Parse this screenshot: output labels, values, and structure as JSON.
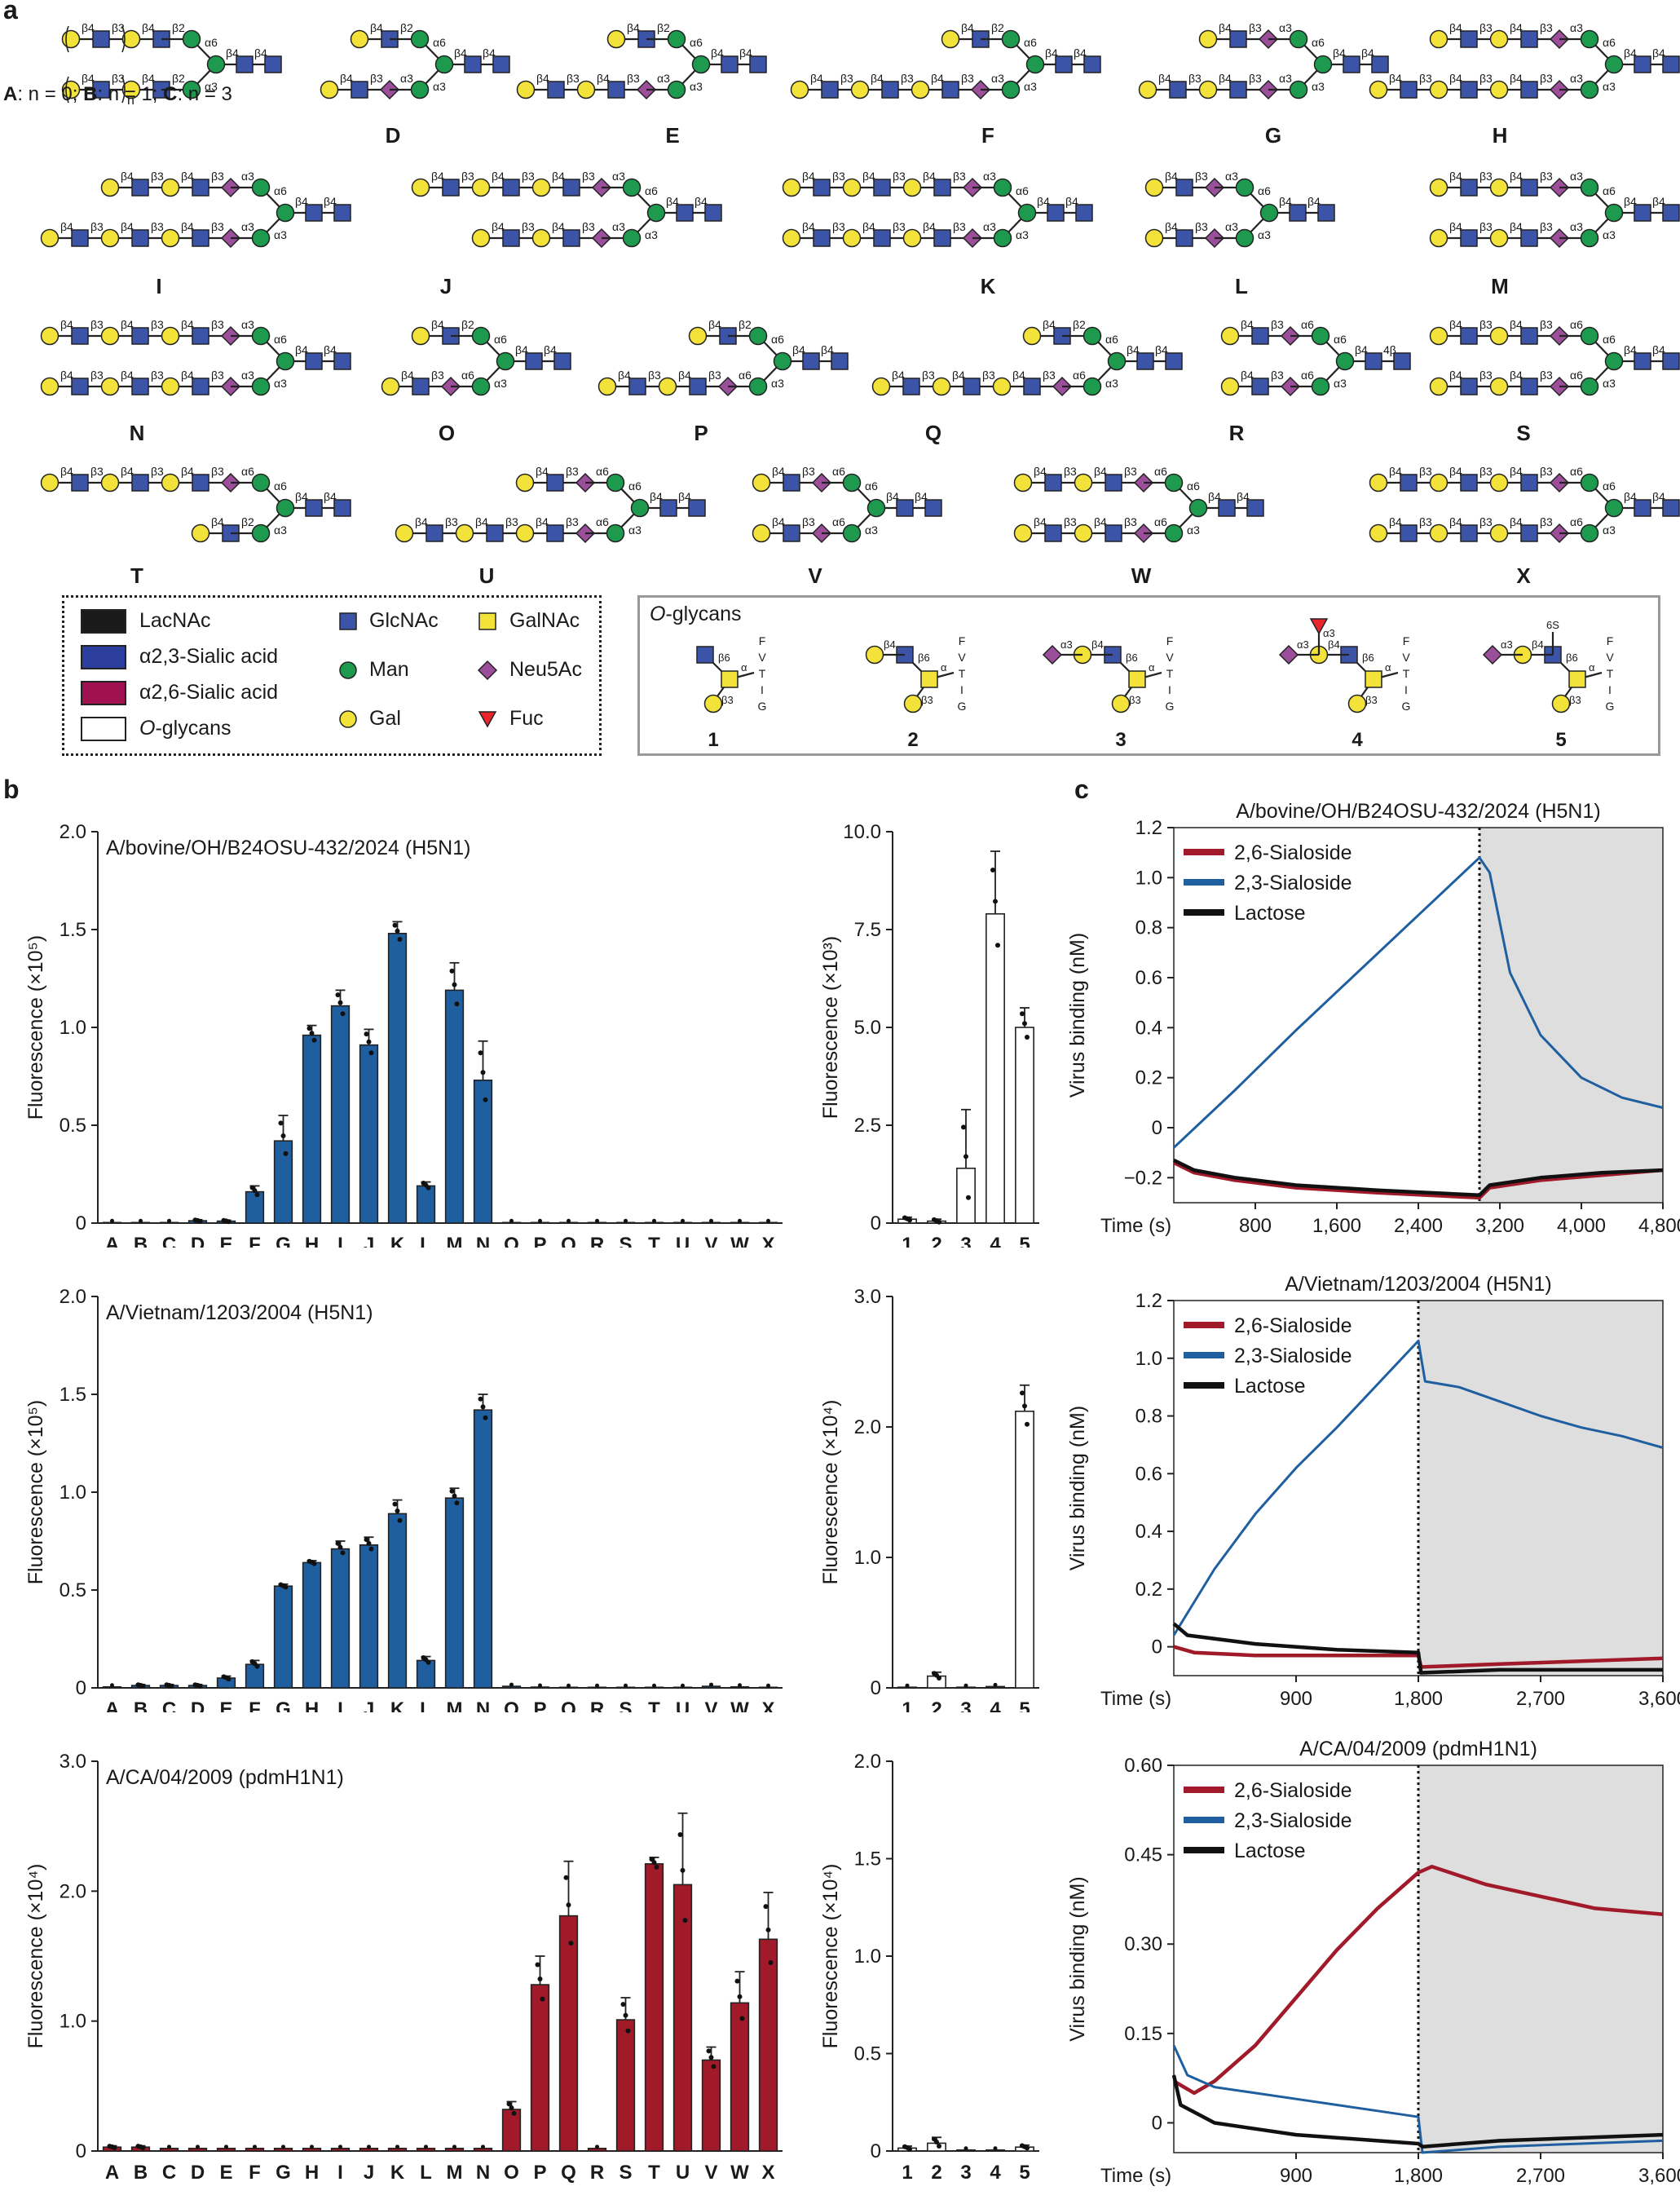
{
  "panels": {
    "a": "a",
    "b": "b",
    "c": "c"
  },
  "glycan_labels": [
    "D",
    "E",
    "F",
    "G",
    "H",
    "I",
    "J",
    "K",
    "L",
    "M",
    "N",
    "O",
    "P",
    "Q",
    "R",
    "S",
    "T",
    "U",
    "V",
    "W",
    "X"
  ],
  "abc_caption": {
    "a": "A",
    "a_text": ": n = 0; ",
    "b": "B",
    "b_text": ": n = 1; ",
    "c": "C",
    "c_text": ": n = 3"
  },
  "legend": {
    "lacnac": "LacNAc",
    "sia23": "α2,3-Sialic acid",
    "sia26": "α2,6-Sialic acid",
    "oglycans": "O-glycans",
    "glcnac": "GlcNAc",
    "man": "Man",
    "gal": "Gal",
    "galnac": "GalNAc",
    "neu5ac": "Neu5Ac",
    "fuc": "Fuc",
    "colors": {
      "lacnac": "#1a1a1a",
      "sia23": "#2d3f9e",
      "sia26": "#a0124f",
      "glcnac": "#3b54a8",
      "man": "#1e9a4e",
      "gal": "#f2e23a",
      "galnac": "#f2e23a",
      "neu5ac": "#9b4f9b",
      "fuc": "#e8262b"
    }
  },
  "oglycan_box": {
    "title_italic": "O",
    "title_rest": "-glycans",
    "numbers": [
      "1",
      "2",
      "3",
      "4",
      "5"
    ],
    "peptide": [
      "F",
      "V",
      "T",
      "I",
      "G"
    ]
  },
  "linkages": {
    "b4": "β4",
    "b3": "β3",
    "b2": "β2",
    "b6": "β6",
    "a6": "α6",
    "a3": "α3",
    "a": "α",
    "n": "n",
    "sixS": "6S",
    "fourb": "4β"
  },
  "chart_data": [
    {
      "id": "b1-left",
      "type": "bar",
      "title": "A/bovine/OH/B24OSU-432/2024 (H5N1)",
      "ylabel": "Fluorescence (×10⁵)",
      "ylim": [
        0,
        2.0
      ],
      "yticks": [
        "0",
        "0.5",
        "1.0",
        "1.5",
        "2.0"
      ],
      "ytick_values": [
        0,
        0.5,
        1.0,
        1.5,
        2.0
      ],
      "categories": [
        "A",
        "B",
        "C",
        "D",
        "E",
        "F",
        "G",
        "H",
        "I",
        "J",
        "K",
        "L",
        "M",
        "N",
        "O",
        "P",
        "Q",
        "R",
        "S",
        "T",
        "U",
        "V",
        "W",
        "X"
      ],
      "values": [
        0.003,
        0.003,
        0.003,
        0.012,
        0.01,
        0.16,
        0.42,
        0.96,
        1.11,
        0.91,
        1.48,
        0.19,
        1.19,
        0.73,
        0.003,
        0.003,
        0.003,
        0.003,
        0.003,
        0.003,
        0.003,
        0.003,
        0.003,
        0.003
      ],
      "errors": [
        0,
        0,
        0,
        0.005,
        0.005,
        0.03,
        0.13,
        0.05,
        0.08,
        0.08,
        0.06,
        0.02,
        0.14,
        0.2,
        0,
        0,
        0,
        0,
        0,
        0,
        0,
        0,
        0,
        0
      ],
      "color": "#1f5fa0"
    },
    {
      "id": "b1-right",
      "type": "bar",
      "ylabel": "Fluorescence (×10³)",
      "ylim": [
        0,
        10.0
      ],
      "yticks": [
        "0",
        "2.5",
        "5.0",
        "7.5",
        "10.0"
      ],
      "ytick_values": [
        0,
        2.5,
        5.0,
        7.5,
        10.0
      ],
      "categories": [
        "1",
        "2",
        "3",
        "4",
        "5"
      ],
      "values": [
        0.1,
        0.05,
        1.4,
        7.9,
        5.0
      ],
      "errors": [
        0.05,
        0.05,
        1.5,
        1.6,
        0.5
      ],
      "color": "#ffffff"
    },
    {
      "id": "b2-left",
      "type": "bar",
      "title": "A/Vietnam/1203/2004 (H5N1)",
      "ylabel": "Fluorescence (×10⁵)",
      "ylim": [
        0,
        2.0
      ],
      "yticks": [
        "0",
        "0.5",
        "1.0",
        "1.5",
        "2.0"
      ],
      "ytick_values": [
        0,
        0.5,
        1.0,
        1.5,
        2.0
      ],
      "categories": [
        "A",
        "B",
        "C",
        "D",
        "E",
        "F",
        "G",
        "H",
        "I",
        "J",
        "K",
        "L",
        "M",
        "N",
        "O",
        "P",
        "Q",
        "R",
        "S",
        "T",
        "U",
        "V",
        "W",
        "X"
      ],
      "values": [
        0.005,
        0.012,
        0.012,
        0.012,
        0.05,
        0.12,
        0.52,
        0.64,
        0.71,
        0.73,
        0.89,
        0.14,
        0.97,
        1.42,
        0.008,
        0.004,
        0.003,
        0.003,
        0.003,
        0.003,
        0.003,
        0.008,
        0.005,
        0.003
      ],
      "errors": [
        0,
        0.005,
        0.005,
        0.005,
        0.01,
        0.02,
        0.01,
        0.01,
        0.04,
        0.04,
        0.07,
        0.02,
        0.05,
        0.08,
        0,
        0,
        0,
        0,
        0,
        0,
        0,
        0,
        0,
        0
      ],
      "color": "#1f5fa0"
    },
    {
      "id": "b2-right",
      "type": "bar",
      "ylabel": "Fluorescence (×10⁴)",
      "ylim": [
        0,
        3.0
      ],
      "yticks": [
        "0",
        "1.0",
        "2.0",
        "3.0"
      ],
      "ytick_values": [
        0,
        1.0,
        2.0,
        3.0
      ],
      "categories": [
        "1",
        "2",
        "3",
        "4",
        "5"
      ],
      "values": [
        0.005,
        0.09,
        0.005,
        0.01,
        2.12
      ],
      "errors": [
        0,
        0.03,
        0,
        0,
        0.2
      ],
      "color": "#ffffff"
    },
    {
      "id": "b3-left",
      "type": "bar",
      "title": "A/CA/04/2009 (pdmH1N1)",
      "ylabel": "Fluorescence (×10⁴)",
      "ylim": [
        0,
        3.0
      ],
      "yticks": [
        "0",
        "1.0",
        "2.0",
        "3.0"
      ],
      "ytick_values": [
        0,
        1.0,
        2.0,
        3.0
      ],
      "categories": [
        "A",
        "B",
        "C",
        "D",
        "E",
        "F",
        "G",
        "H",
        "I",
        "J",
        "K",
        "L",
        "M",
        "N",
        "O",
        "P",
        "Q",
        "R",
        "S",
        "T",
        "U",
        "V",
        "W",
        "X"
      ],
      "values": [
        0.03,
        0.03,
        0.02,
        0.02,
        0.02,
        0.02,
        0.02,
        0.02,
        0.02,
        0.02,
        0.02,
        0.02,
        0.02,
        0.02,
        0.32,
        1.28,
        1.81,
        0.02,
        1.01,
        2.21,
        2.05,
        0.7,
        1.14,
        1.63
      ],
      "errors": [
        0.01,
        0.01,
        0,
        0,
        0,
        0,
        0,
        0,
        0,
        0,
        0,
        0,
        0,
        0,
        0.06,
        0.22,
        0.42,
        0,
        0.17,
        0.05,
        0.55,
        0.1,
        0.24,
        0.36
      ],
      "color": "#a01a2a"
    },
    {
      "id": "b3-right",
      "type": "bar",
      "ylabel": "Fluorescence (×10⁴)",
      "ylim": [
        0,
        2.0
      ],
      "yticks": [
        "0",
        "0.5",
        "1.0",
        "1.5",
        "2.0"
      ],
      "ytick_values": [
        0,
        0.5,
        1.0,
        1.5,
        2.0
      ],
      "categories": [
        "1",
        "2",
        "3",
        "4",
        "5"
      ],
      "values": [
        0.015,
        0.04,
        0.005,
        0.005,
        0.02
      ],
      "errors": [
        0.01,
        0.03,
        0,
        0,
        0.01
      ],
      "color": "#ffffff"
    },
    {
      "id": "c1",
      "type": "line",
      "title": "A/bovine/OH/B24OSU-432/2024 (H5N1)",
      "xlabel": "Time (s)",
      "ylabel": "Virus binding (nM)",
      "xlim": [
        0,
        4800
      ],
      "ylim": [
        -0.3,
        1.2
      ],
      "xticks": [
        "800",
        "1,600",
        "2,400",
        "3,200",
        "4,000",
        "4,800"
      ],
      "xtick_values": [
        800,
        1600,
        2400,
        3200,
        4000,
        4800
      ],
      "yticks": [
        "−0.2",
        "0",
        "0.2",
        "0.4",
        "0.6",
        "0.8",
        "1.0",
        "1.2"
      ],
      "ytick_values": [
        -0.2,
        0,
        0.2,
        0.4,
        0.6,
        0.8,
        1.0,
        1.2
      ],
      "dissociation_start": 3000,
      "series": [
        {
          "name": "2,6-Sialoside",
          "color": "#a01a2a",
          "x": [
            0,
            200,
            600,
            1200,
            2000,
            3000,
            3100,
            3600,
            4200,
            4800
          ],
          "y": [
            -0.14,
            -0.18,
            -0.21,
            -0.24,
            -0.26,
            -0.28,
            -0.24,
            -0.21,
            -0.19,
            -0.17
          ]
        },
        {
          "name": "2,3-Sialoside",
          "color": "#1f5fa0",
          "x": [
            0,
            600,
            1200,
            1800,
            2400,
            3000,
            3100,
            3300,
            3600,
            4000,
            4400,
            4800
          ],
          "y": [
            -0.08,
            0.15,
            0.39,
            0.62,
            0.85,
            1.08,
            1.02,
            0.62,
            0.37,
            0.2,
            0.12,
            0.08
          ]
        },
        {
          "name": "Lactose",
          "color": "#111111",
          "x": [
            0,
            200,
            600,
            1200,
            2000,
            3000,
            3100,
            3600,
            4200,
            4800
          ],
          "y": [
            -0.13,
            -0.17,
            -0.2,
            -0.23,
            -0.25,
            -0.27,
            -0.23,
            -0.2,
            -0.18,
            -0.17
          ]
        }
      ]
    },
    {
      "id": "c2",
      "type": "line",
      "title": "A/Vietnam/1203/2004 (H5N1)",
      "xlabel": "Time (s)",
      "ylabel": "Virus binding (nM)",
      "xlim": [
        0,
        3600
      ],
      "ylim": [
        -0.1,
        1.2
      ],
      "xticks": [
        "900",
        "1,800",
        "2,700",
        "3,600"
      ],
      "xtick_values": [
        900,
        1800,
        2700,
        3600
      ],
      "yticks": [
        "0",
        "0.2",
        "0.4",
        "0.6",
        "0.8",
        "1.0",
        "1.2"
      ],
      "ytick_values": [
        0,
        0.2,
        0.4,
        0.6,
        0.8,
        1.0,
        1.2
      ],
      "dissociation_start": 1800,
      "series": [
        {
          "name": "2,6-Sialoside",
          "color": "#a01a2a",
          "x": [
            0,
            150,
            600,
            1200,
            1800,
            1820,
            2400,
            3000,
            3600
          ],
          "y": [
            0.0,
            -0.02,
            -0.03,
            -0.03,
            -0.03,
            -0.07,
            -0.06,
            -0.05,
            -0.04
          ]
        },
        {
          "name": "2,3-Sialoside",
          "color": "#1f5fa0",
          "x": [
            0,
            300,
            600,
            900,
            1200,
            1500,
            1800,
            1850,
            2100,
            2400,
            2700,
            3000,
            3300,
            3600
          ],
          "y": [
            0.04,
            0.27,
            0.46,
            0.62,
            0.76,
            0.91,
            1.06,
            0.92,
            0.9,
            0.85,
            0.8,
            0.76,
            0.73,
            0.69
          ]
        },
        {
          "name": "Lactose",
          "color": "#111111",
          "x": [
            0,
            100,
            600,
            1200,
            1800,
            1820,
            2400,
            3000,
            3600
          ],
          "y": [
            0.08,
            0.04,
            0.01,
            -0.01,
            -0.02,
            -0.09,
            -0.08,
            -0.08,
            -0.08
          ]
        }
      ]
    },
    {
      "id": "c3",
      "type": "line",
      "title": "A/CA/04/2009 (pdmH1N1)",
      "xlabel": "Time (s)",
      "ylabel": "Virus binding (nM)",
      "xlim": [
        0,
        3600
      ],
      "ylim": [
        -0.05,
        0.6
      ],
      "xticks": [
        "900",
        "1,800",
        "2,700",
        "3,600"
      ],
      "xtick_values": [
        900,
        1800,
        2700,
        3600
      ],
      "yticks": [
        "0",
        "0.15",
        "0.30",
        "0.45",
        "0.60"
      ],
      "ytick_values": [
        0,
        0.15,
        0.3,
        0.45,
        0.6
      ],
      "dissociation_start": 1800,
      "series": [
        {
          "name": "2,6-Sialoside",
          "color": "#a01a2a",
          "x": [
            0,
            150,
            300,
            600,
            900,
            1200,
            1500,
            1800,
            1900,
            2300,
            2700,
            3100,
            3600
          ],
          "y": [
            0.07,
            0.05,
            0.07,
            0.13,
            0.21,
            0.29,
            0.36,
            0.42,
            0.43,
            0.4,
            0.38,
            0.36,
            0.35
          ]
        },
        {
          "name": "2,3-Sialoside",
          "color": "#1f5fa0",
          "x": [
            0,
            100,
            300,
            600,
            900,
            1200,
            1500,
            1800,
            1830,
            2400,
            3000,
            3600
          ],
          "y": [
            0.13,
            0.08,
            0.06,
            0.05,
            0.04,
            0.03,
            0.02,
            0.01,
            -0.05,
            -0.04,
            -0.035,
            -0.03
          ]
        },
        {
          "name": "Lactose",
          "color": "#111111",
          "x": [
            0,
            50,
            300,
            600,
            900,
            1200,
            1500,
            1800,
            1830,
            2400,
            3000,
            3600
          ],
          "y": [
            0.08,
            0.03,
            0.0,
            -0.01,
            -0.02,
            -0.025,
            -0.03,
            -0.035,
            -0.04,
            -0.03,
            -0.025,
            -0.02
          ]
        }
      ]
    }
  ]
}
